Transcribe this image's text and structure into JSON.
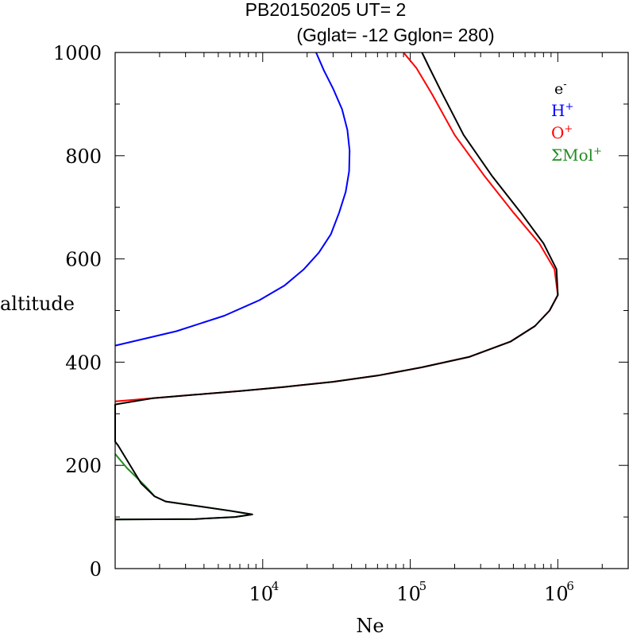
{
  "chart_data": {
    "type": "line",
    "title_line1": "PB20150205   UT=  2",
    "title_line2": "(Gglat= -12   Gglon=  280)",
    "xlabel": "Ne",
    "ylabel": "altitude",
    "x_scale": "log",
    "xlim": [
      1000,
      3000000
    ],
    "ylim": [
      0,
      1000
    ],
    "y_ticks": [
      0,
      200,
      400,
      600,
      800,
      1000
    ],
    "x_ticks": [
      {
        "value": 10000,
        "base": "10",
        "exp": "4"
      },
      {
        "value": 100000,
        "base": "10",
        "exp": "5"
      },
      {
        "value": 1000000,
        "base": "10",
        "exp": "6"
      }
    ],
    "legend_position": "top-right",
    "series": [
      {
        "name": "H+",
        "label": "H",
        "sup": "+",
        "color": "#0000ff",
        "points": [
          [
            1000,
            432
          ],
          [
            2600,
            460
          ],
          [
            5500,
            490
          ],
          [
            9500,
            520
          ],
          [
            14000,
            548
          ],
          [
            19000,
            580
          ],
          [
            24000,
            612
          ],
          [
            29000,
            648
          ],
          [
            33000,
            690
          ],
          [
            36500,
            730
          ],
          [
            38500,
            770
          ],
          [
            38800,
            810
          ],
          [
            37500,
            850
          ],
          [
            34500,
            890
          ],
          [
            30000,
            930
          ],
          [
            26000,
            965
          ],
          [
            23000,
            1000
          ]
        ]
      },
      {
        "name": "O+",
        "label": "O",
        "sup": "+",
        "color": "#ff0000",
        "points": [
          [
            1000,
            324
          ],
          [
            1800,
            330
          ],
          [
            3500,
            337
          ],
          [
            7000,
            344
          ],
          [
            14000,
            352
          ],
          [
            30000,
            362
          ],
          [
            60000,
            374
          ],
          [
            120000,
            390
          ],
          [
            250000,
            410
          ],
          [
            480000,
            440
          ],
          [
            700000,
            470
          ],
          [
            880000,
            500
          ],
          [
            1000000,
            530
          ],
          [
            950000,
            580
          ],
          [
            750000,
            630
          ],
          [
            500000,
            690
          ],
          [
            320000,
            760
          ],
          [
            200000,
            840
          ],
          [
            140000,
            920
          ],
          [
            110000,
            970
          ],
          [
            90000,
            1000
          ]
        ]
      },
      {
        "name": "SigmaMol+",
        "label": "ΣMol",
        "sup": "+",
        "color": "#228b22",
        "points": [
          [
            1000,
            95
          ],
          [
            3500,
            96
          ],
          [
            6500,
            100
          ],
          [
            8500,
            105
          ],
          [
            6000,
            112
          ],
          [
            2200,
            130
          ],
          [
            1850,
            140
          ],
          [
            1600,
            160
          ],
          [
            1200,
            195
          ],
          [
            1000,
            222
          ]
        ]
      },
      {
        "name": "e-",
        "label": "e",
        "sup": "-",
        "color": "#000000",
        "points": [
          [
            1000,
            95
          ],
          [
            3500,
            96
          ],
          [
            6500,
            100
          ],
          [
            8500,
            105
          ],
          [
            6000,
            112
          ],
          [
            2200,
            130
          ],
          [
            1850,
            140
          ],
          [
            1500,
            165
          ],
          [
            1050,
            238
          ],
          [
            1000,
            246
          ],
          [
            1000,
            318
          ],
          [
            1800,
            330
          ],
          [
            3500,
            337
          ],
          [
            7000,
            344
          ],
          [
            14000,
            352
          ],
          [
            30000,
            362
          ],
          [
            60000,
            374
          ],
          [
            120000,
            390
          ],
          [
            250000,
            410
          ],
          [
            480000,
            440
          ],
          [
            700000,
            470
          ],
          [
            880000,
            500
          ],
          [
            1000000,
            530
          ],
          [
            980000,
            580
          ],
          [
            800000,
            630
          ],
          [
            560000,
            690
          ],
          [
            360000,
            760
          ],
          [
            230000,
            840
          ],
          [
            165000,
            920
          ],
          [
            135000,
            970
          ],
          [
            120000,
            1000
          ]
        ]
      }
    ]
  }
}
